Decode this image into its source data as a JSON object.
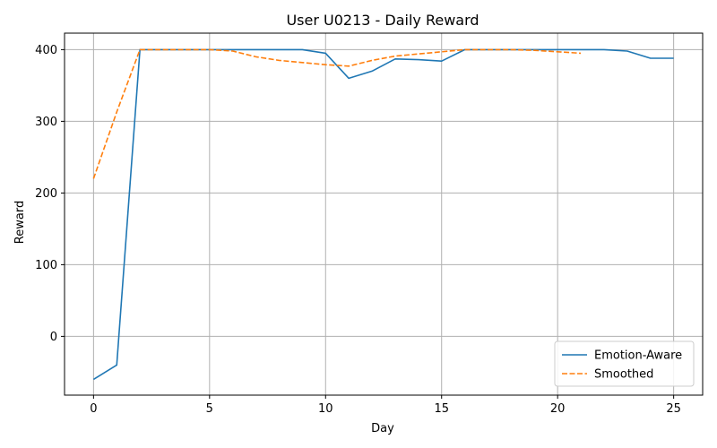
{
  "chart_data": {
    "type": "line",
    "title": "User U0213 - Daily Reward",
    "xlabel": "Day",
    "ylabel": "Reward",
    "xlim": [
      -1.25,
      26.25
    ],
    "ylim": [
      -82,
      423
    ],
    "xticks": [
      0,
      5,
      10,
      15,
      20,
      25
    ],
    "yticks": [
      0,
      100,
      200,
      300,
      400
    ],
    "grid": true,
    "legend_position": "lower-right",
    "series": [
      {
        "name": "Emotion-Aware",
        "color": "#1f77b4",
        "style": "solid",
        "x": [
          0,
          1,
          2,
          3,
          4,
          5,
          6,
          7,
          8,
          9,
          10,
          11,
          12,
          13,
          14,
          15,
          16,
          17,
          18,
          19,
          20,
          21,
          22,
          23,
          24,
          25
        ],
        "y": [
          -60,
          -40,
          400,
          400,
          400,
          400,
          400,
          400,
          400,
          400,
          395,
          360,
          370,
          387,
          386,
          384,
          400,
          400,
          400,
          400,
          400,
          400,
          400,
          398,
          388,
          388
        ]
      },
      {
        "name": "Smoothed",
        "color": "#ff7f0e",
        "style": "dashed",
        "x": [
          0,
          1,
          2,
          3,
          4,
          5,
          6,
          7,
          8,
          9,
          10,
          11,
          12,
          13,
          14,
          15,
          16,
          17,
          18,
          19,
          20,
          21
        ],
        "y": [
          220,
          313,
          400,
          400,
          400,
          400,
          398,
          390,
          385,
          382,
          379,
          377,
          385,
          391,
          394,
          397,
          400,
          400,
          400,
          399,
          397,
          395
        ]
      }
    ]
  }
}
